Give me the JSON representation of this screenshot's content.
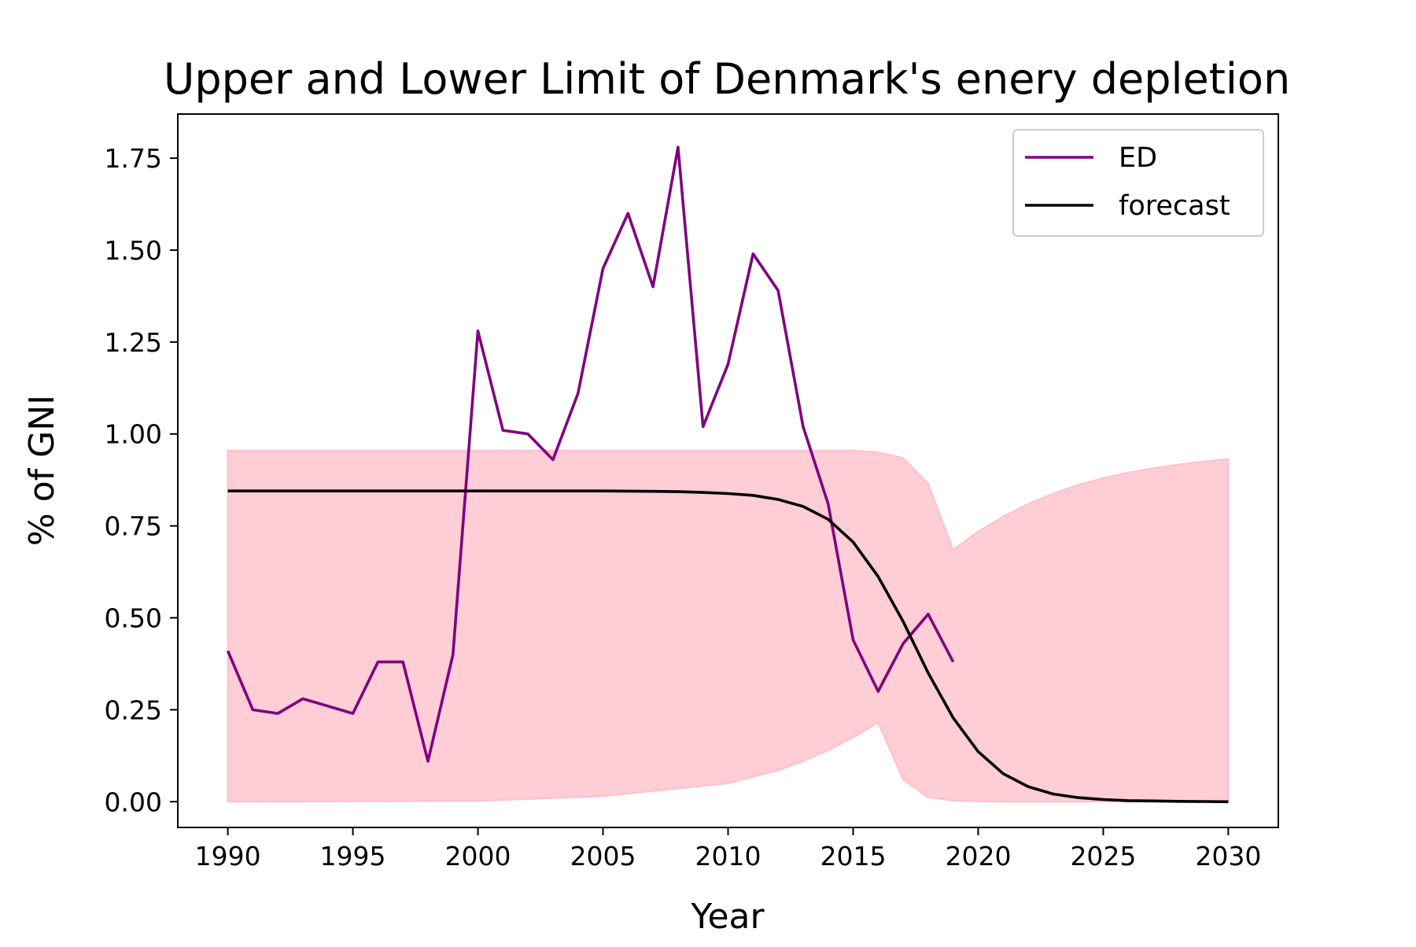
{
  "chart_data": {
    "type": "line",
    "title": "Upper and Lower Limit of Denmark's enery depletion",
    "xlabel": "Year",
    "ylabel": "% of GNI",
    "xlim": [
      1988,
      2032
    ],
    "ylim": [
      -0.07,
      1.87
    ],
    "xticks": [
      1990,
      1995,
      2000,
      2005,
      2010,
      2015,
      2020,
      2025,
      2030
    ],
    "xtick_labels": [
      "1990",
      "1995",
      "2000",
      "2005",
      "2010",
      "2015",
      "2020",
      "2025",
      "2030"
    ],
    "yticks": [
      0.0,
      0.25,
      0.5,
      0.75,
      1.0,
      1.25,
      1.5,
      1.75
    ],
    "ytick_labels": [
      "0.00",
      "0.25",
      "0.50",
      "0.75",
      "1.00",
      "1.25",
      "1.50",
      "1.75"
    ],
    "grid": false,
    "legend_position": "upper right",
    "colors": {
      "ED": "#800080",
      "forecast": "#000000",
      "band": "#ffc0cb"
    },
    "series": [
      {
        "name": "ED",
        "color": "#800080",
        "x": [
          1990,
          1991,
          1992,
          1993,
          1994,
          1995,
          1996,
          1997,
          1998,
          1999,
          2000,
          2001,
          2002,
          2003,
          2004,
          2005,
          2006,
          2007,
          2008,
          2009,
          2010,
          2011,
          2012,
          2013,
          2014,
          2015,
          2016,
          2017,
          2018,
          2019
        ],
        "values": [
          0.41,
          0.25,
          0.24,
          0.28,
          0.26,
          0.24,
          0.38,
          0.38,
          0.11,
          0.4,
          1.28,
          1.01,
          1.0,
          0.93,
          1.11,
          1.45,
          1.6,
          1.4,
          1.78,
          1.02,
          1.19,
          1.49,
          1.39,
          1.02,
          0.81,
          0.44,
          0.3,
          0.43,
          0.51,
          0.38
        ]
      },
      {
        "name": "forecast",
        "color": "#000000",
        "x": [
          1990,
          1995,
          2000,
          2005,
          2007,
          2008,
          2009,
          2010,
          2011,
          2012,
          2013,
          2014,
          2015,
          2016,
          2017,
          2018,
          2019,
          2020,
          2021,
          2022,
          2023,
          2024,
          2025,
          2026,
          2027,
          2028,
          2030
        ],
        "values": [
          0.845,
          0.845,
          0.845,
          0.845,
          0.844,
          0.843,
          0.841,
          0.838,
          0.833,
          0.822,
          0.803,
          0.768,
          0.706,
          0.612,
          0.49,
          0.35,
          0.228,
          0.136,
          0.076,
          0.041,
          0.021,
          0.011,
          0.006,
          0.003,
          0.002,
          0.001,
          0.0
        ]
      }
    ],
    "band": {
      "x": [
        1990,
        2000,
        2005,
        2010,
        2012,
        2013,
        2014,
        2015,
        2016,
        2017,
        2018,
        2019,
        2020,
        2021,
        2022,
        2023,
        2024,
        2025,
        2026,
        2027,
        2028,
        2029,
        2030
      ],
      "upper": [
        0.955,
        0.955,
        0.955,
        0.955,
        0.955,
        0.955,
        0.955,
        0.955,
        0.95,
        0.935,
        0.865,
        0.685,
        0.735,
        0.775,
        0.81,
        0.838,
        0.862,
        0.88,
        0.895,
        0.907,
        0.917,
        0.925,
        0.932
      ],
      "lower": [
        0.0,
        0.002,
        0.015,
        0.05,
        0.085,
        0.11,
        0.14,
        0.175,
        0.215,
        0.06,
        0.012,
        0.003,
        0.001,
        0.0,
        0.0,
        0.0,
        0.0,
        0.0,
        0.0,
        0.0,
        0.0,
        0.0,
        0.0
      ]
    }
  }
}
